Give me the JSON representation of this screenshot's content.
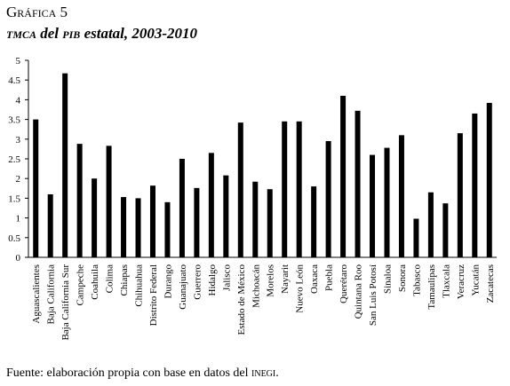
{
  "heading": {
    "label_main": "Gráfica",
    "label_num": " 5",
    "sub_tmca": "tmca",
    "sub_mid": " del ",
    "sub_pib": "pib",
    "sub_rest": " estatal, 2003-2010"
  },
  "source": {
    "prefix": "Fuente: elaboración propia con base en datos del ",
    "inegi": "inegi",
    "suffix": "."
  },
  "chart_data": {
    "type": "bar",
    "title": "tmca del pib estatal, 2003-2010",
    "xlabel": "",
    "ylabel": "",
    "ylim": [
      0,
      5
    ],
    "yticks": [
      "0",
      "0.5",
      "1",
      "1.5",
      "2",
      "2.5",
      "3",
      "3.5",
      "4",
      "4.5",
      "5"
    ],
    "grid": false,
    "bar_color": "#000000",
    "categories": [
      "Aguascalientes",
      "Baja California",
      "Baja California Sur",
      "Campeche",
      "Coahuila",
      "Colima",
      "Chiapas",
      "Chihuahua",
      "Distrito Federal",
      "Durango",
      "Guanajuato",
      "Guerrero",
      "Hidalgo",
      "Jalisco",
      "Estado de México",
      "Michoacán",
      "Morelos",
      "Nayarit",
      "Nuevo León",
      "Oaxaca",
      "Puebla",
      "Querétaro",
      "Quintana Roo",
      "San Luis Potosí",
      "Sinaloa",
      "Sonora",
      "Tabasco",
      "Tamaulipas",
      "Tlaxcala",
      "Veracruz",
      "Yucatán",
      "Zacatecas"
    ],
    "values": [
      3.5,
      1.6,
      4.67,
      2.88,
      2.0,
      2.83,
      1.53,
      1.5,
      1.82,
      1.4,
      2.5,
      1.76,
      2.65,
      2.08,
      3.42,
      1.92,
      1.73,
      3.45,
      3.45,
      1.8,
      2.95,
      4.1,
      3.72,
      2.6,
      2.78,
      3.1,
      0.98,
      1.65,
      1.37,
      3.15,
      3.65,
      3.92
    ]
  }
}
